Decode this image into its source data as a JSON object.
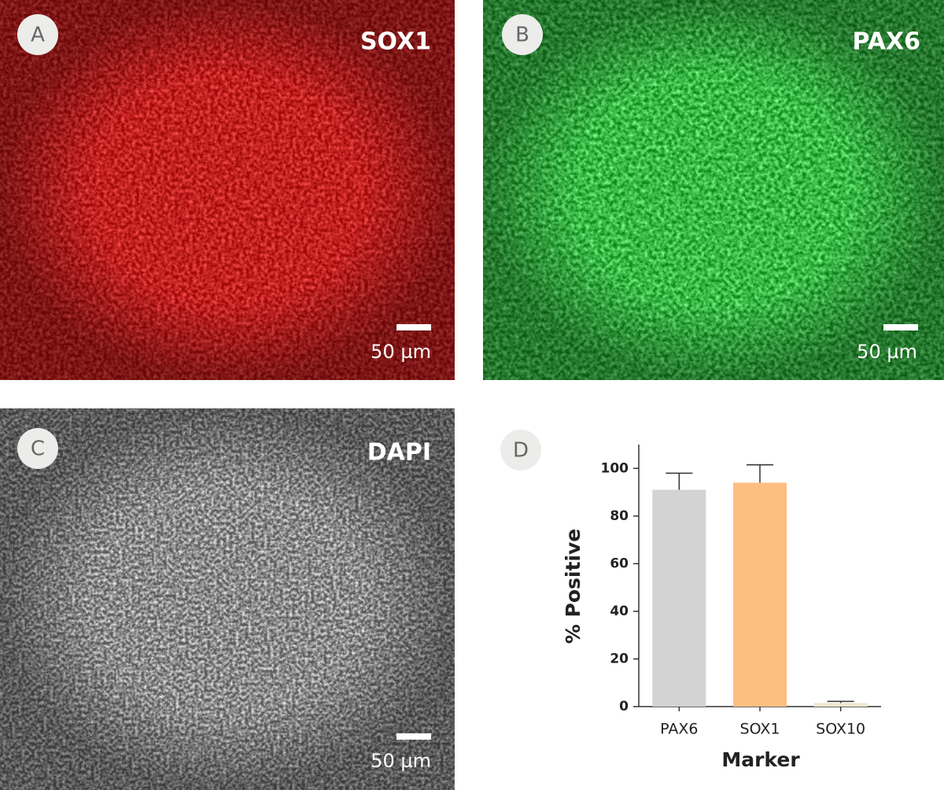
{
  "panels": [
    {
      "label": "A",
      "stain": "SOX1",
      "scale": "50 µm"
    },
    {
      "label": "B",
      "stain": "PAX6",
      "scale": "50 µm"
    },
    {
      "label": "C",
      "stain": "DAPI",
      "scale": "50 µm"
    }
  ],
  "chart_data": {
    "type": "bar",
    "label": "D",
    "xlabel": "Marker",
    "ylabel": "% Positive",
    "categories": [
      "PAX6",
      "SOX1",
      "SOX10"
    ],
    "values": [
      91,
      94,
      1.5
    ],
    "errors": [
      7,
      7.5,
      0.7
    ],
    "colors": [
      "#d3d3d3",
      "#fdbf80",
      "#efe6cf"
    ],
    "ylim": [
      0,
      110
    ],
    "yticks": [
      0,
      20,
      40,
      60,
      80,
      100
    ]
  }
}
